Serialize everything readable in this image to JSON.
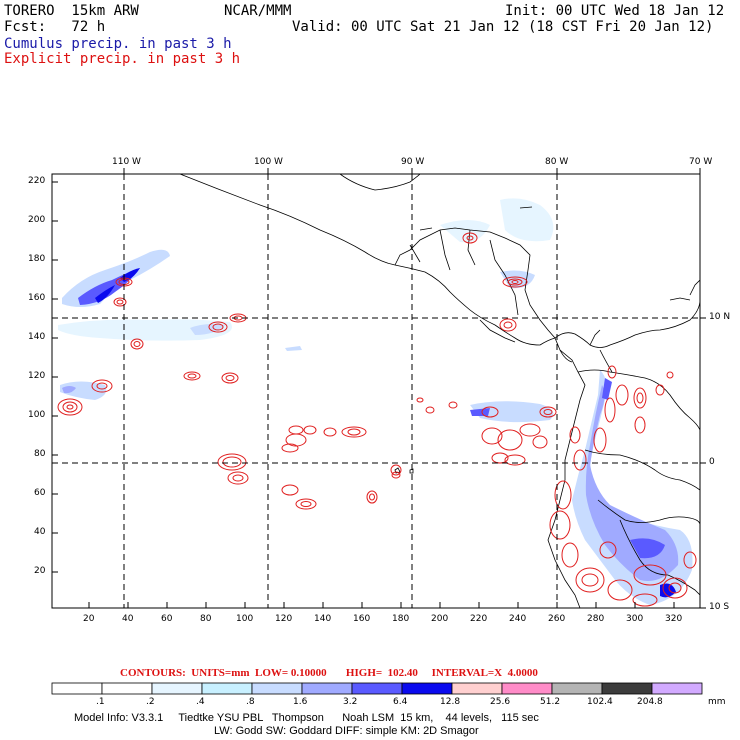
{
  "header": {
    "model": "TORERO  15km ARW",
    "center": "NCAR/MMM",
    "init": "Init: 00 UTC Wed 18 Jan 12",
    "fcst": "Fcst:   72 h",
    "valid": "Valid: 00 UTC Sat 21 Jan 12 (18 CST Fri 20 Jan 12)",
    "legend_cumulus": "Cumulus precip. in past 3 h",
    "legend_explicit": "Explicit precip. in past 3 h"
  },
  "map": {
    "lon_labels": [
      "110 W",
      "100 W",
      "90 W",
      "80 W",
      "70 W"
    ],
    "lat_labels": [
      "10 N",
      "0",
      "10 S"
    ],
    "y_ticks": [
      "220",
      "200",
      "180",
      "160",
      "140",
      "120",
      "100",
      "80",
      "60",
      "40",
      "20"
    ],
    "x_ticks": [
      "20",
      "40",
      "60",
      "80",
      "100",
      "120",
      "140",
      "160",
      "180",
      "200",
      "220",
      "240",
      "260",
      "280",
      "300",
      "320"
    ]
  },
  "contours": {
    "label": "CONTOURS:  UNITS=mm  LOW= 0.10000       HIGH=  102.40     INTERVAL=X  4.0000"
  },
  "colorbar": {
    "labels": [
      ".1",
      ".2",
      ".4",
      ".8",
      "1.6",
      "3.2",
      "6.4",
      "12.8",
      "25.6",
      "51.2",
      "102.4",
      "204.8"
    ],
    "units": "mm",
    "colors": [
      "#ffffff",
      "#ffffff",
      "#e6f5ff",
      "#c8f0ff",
      "#c8dcff",
      "#a0aaff",
      "#5a5aff",
      "#0a0aee",
      "#ffd0d0",
      "#ff8cc8",
      "#b4b4b4",
      "#3c3c3c",
      "#d2aaff"
    ]
  },
  "footer": {
    "line1": "Model Info: V3.3.1     Tiedtke YSU PBL   Thompson      Noah LSM  15 km,    44 levels,   115 sec",
    "line2": "LW: Godd SW: Goddard DIFF: simple KM: 2D Smagor"
  }
}
